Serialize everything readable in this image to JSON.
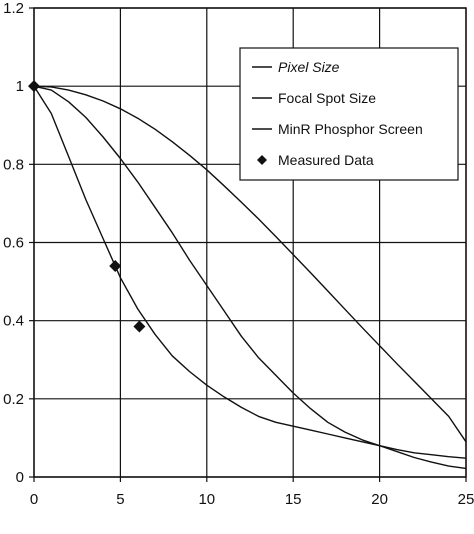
{
  "chart_data": {
    "type": "line",
    "title": "",
    "xlabel": "",
    "ylabel": "",
    "xlim": [
      0,
      25
    ],
    "ylim": [
      0,
      1.2
    ],
    "x_ticks": [
      "0",
      "5",
      "10",
      "15",
      "20",
      "25"
    ],
    "y_ticks": [
      "0",
      "0.2",
      "0.4",
      "0.6",
      "0.8",
      "1",
      "1.2"
    ],
    "grid": true,
    "legend_position": "top-right",
    "series": [
      {
        "name": "Pixel Size",
        "style": "line",
        "color": "#111111",
        "x": [
          0,
          1,
          2,
          3,
          4,
          5,
          6,
          7,
          8,
          9,
          10,
          11,
          12,
          13,
          14,
          15,
          16,
          17,
          18,
          19,
          20,
          21,
          22,
          23,
          24,
          25
        ],
        "y": [
          1.0,
          0.998,
          0.99,
          0.978,
          0.962,
          0.942,
          0.918,
          0.89,
          0.858,
          0.823,
          0.786,
          0.745,
          0.703,
          0.66,
          0.615,
          0.569,
          0.523,
          0.476,
          0.429,
          0.382,
          0.336,
          0.29,
          0.245,
          0.2,
          0.155,
          0.09
        ]
      },
      {
        "name": "Focal Spot Size",
        "style": "line",
        "color": "#111111",
        "x": [
          0,
          1,
          2,
          3,
          4,
          5,
          6,
          7,
          8,
          9,
          10,
          11,
          12,
          13,
          14,
          15,
          16,
          17,
          18,
          19,
          20,
          21,
          22,
          23,
          24,
          25
        ],
        "y": [
          1.0,
          0.99,
          0.96,
          0.92,
          0.87,
          0.815,
          0.755,
          0.69,
          0.625,
          0.555,
          0.49,
          0.425,
          0.36,
          0.305,
          0.26,
          0.215,
          0.175,
          0.14,
          0.115,
          0.095,
          0.08,
          0.07,
          0.062,
          0.057,
          0.052,
          0.048
        ]
      },
      {
        "name": "MinR Phosphor Screen",
        "style": "line",
        "color": "#111111",
        "x": [
          0,
          1,
          2,
          3,
          4,
          5,
          6,
          7,
          8,
          9,
          10,
          11,
          12,
          13,
          14,
          15,
          16,
          17,
          18,
          19,
          20,
          21,
          22,
          23,
          24,
          25
        ],
        "y": [
          1.0,
          0.93,
          0.82,
          0.71,
          0.61,
          0.51,
          0.43,
          0.365,
          0.31,
          0.27,
          0.235,
          0.205,
          0.178,
          0.155,
          0.14,
          0.13,
          0.12,
          0.11,
          0.1,
          0.09,
          0.08,
          0.065,
          0.05,
          0.038,
          0.028,
          0.022
        ]
      },
      {
        "name": "Measured Data",
        "style": "marker",
        "marker": "diamond",
        "color": "#111111",
        "x": [
          0,
          4.7,
          6.1
        ],
        "y": [
          1.0,
          0.54,
          0.385
        ]
      }
    ]
  }
}
